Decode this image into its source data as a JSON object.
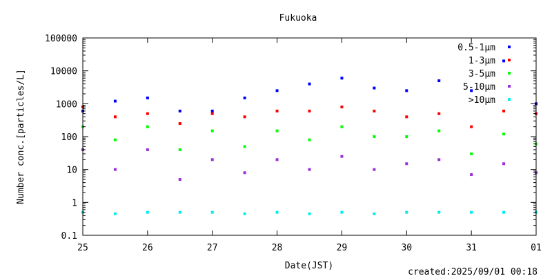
{
  "chart_data": {
    "type": "scatter",
    "title": "Fukuoka",
    "xlabel": "Date(JST)",
    "ylabel": "Number conc.[particles/L]",
    "created": "created:2025/09/01 00:18",
    "y_scale": "log",
    "ylim": [
      0.1,
      100000
    ],
    "xlim": [
      "2025-08-25",
      "2025-09-01"
    ],
    "x_ticks": [
      "25",
      "26",
      "27",
      "28",
      "29",
      "30",
      "31",
      "01"
    ],
    "y_ticks": [
      "0.1",
      "1",
      "10",
      "100",
      "1000",
      "10000",
      "100000"
    ],
    "legend_position": "top-right",
    "grid": false,
    "x": [
      "2025-08-25",
      "2025-08-25 12:00",
      "2025-08-26",
      "2025-08-26 12:00",
      "2025-08-27",
      "2025-08-27 12:00",
      "2025-08-28",
      "2025-08-28 12:00",
      "2025-08-29",
      "2025-08-29 12:00",
      "2025-08-30",
      "2025-08-30 12:00",
      "2025-08-31",
      "2025-08-31 12:00",
      "2025-09-01"
    ],
    "series": [
      {
        "name": "0.5-1μm",
        "color": "#0000ff",
        "values": [
          600,
          1200,
          1500,
          600,
          600,
          1500,
          2500,
          4000,
          6000,
          3000,
          2500,
          5000,
          2500,
          20000,
          1000
        ]
      },
      {
        "name": "1-3μm",
        "color": "#ff0000",
        "values": [
          800,
          400,
          500,
          250,
          500,
          400,
          600,
          600,
          800,
          600,
          400,
          500,
          200,
          600,
          500
        ]
      },
      {
        "name": "3-5μm",
        "color": "#00ff00",
        "values": [
          200,
          80,
          200,
          40,
          150,
          50,
          150,
          80,
          200,
          100,
          100,
          150,
          30,
          120,
          60
        ]
      },
      {
        "name": "5-10μm",
        "color": "#9b30d9",
        "values": [
          40,
          10,
          40,
          5,
          20,
          8,
          20,
          10,
          25,
          10,
          15,
          20,
          7,
          15,
          8
        ]
      },
      {
        "name": ">10μm",
        "color": "#00eeee",
        "values": [
          0.5,
          0.45,
          0.5,
          0.5,
          0.5,
          0.45,
          0.5,
          0.45,
          0.5,
          0.45,
          0.5,
          0.5,
          0.5,
          0.5,
          0.5
        ]
      }
    ]
  }
}
